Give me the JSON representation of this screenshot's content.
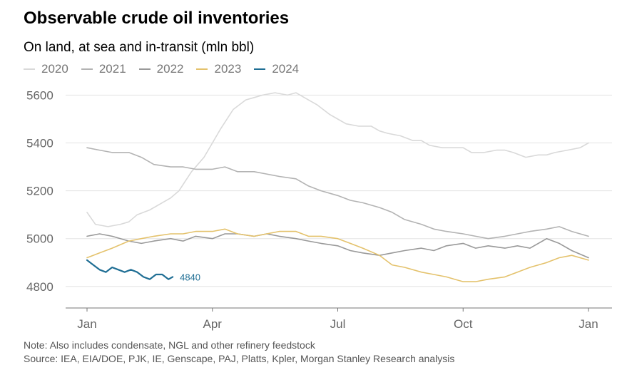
{
  "chart_data": {
    "type": "line",
    "title": "Observable crude oil inventories",
    "subtitle": "On land, at sea and in-transit (mln bbl)",
    "x_ticks": [
      "Jan",
      "Apr",
      "Jul",
      "Oct",
      "Jan"
    ],
    "y_ticks": [
      "5600",
      "5400",
      "5200",
      "5000",
      "4800"
    ],
    "ylim": [
      4710,
      5640
    ],
    "grid": "horizontal",
    "legend_position": "top-left",
    "series": [
      {
        "name": "2020",
        "color": "#d9d9d9",
        "x": [
          0,
          0.2,
          0.5,
          0.8,
          1.0,
          1.2,
          1.5,
          1.8,
          2.0,
          2.2,
          2.5,
          2.8,
          3.0,
          3.2,
          3.5,
          3.8,
          4.0,
          4.2,
          4.5,
          4.8,
          5.0,
          5.2,
          5.5,
          5.8,
          6.0,
          6.2,
          6.5,
          6.8,
          7.0,
          7.2,
          7.5,
          7.8,
          8.0,
          8.2,
          8.5,
          8.8,
          9.0,
          9.2,
          9.5,
          9.8,
          10.0,
          10.2,
          10.5,
          10.8,
          11.0,
          11.2,
          11.5,
          11.8,
          12.0
        ],
        "y": [
          5110,
          5060,
          5050,
          5060,
          5070,
          5100,
          5120,
          5150,
          5170,
          5200,
          5280,
          5340,
          5400,
          5460,
          5540,
          5580,
          5590,
          5600,
          5610,
          5600,
          5610,
          5590,
          5560,
          5520,
          5500,
          5480,
          5470,
          5470,
          5450,
          5440,
          5430,
          5410,
          5410,
          5390,
          5380,
          5380,
          5380,
          5360,
          5360,
          5370,
          5370,
          5360,
          5340,
          5350,
          5350,
          5360,
          5370,
          5380,
          5400
        ]
      },
      {
        "name": "2021",
        "color": "#b3b3b3",
        "x": [
          0,
          0.3,
          0.6,
          1.0,
          1.3,
          1.6,
          2.0,
          2.3,
          2.6,
          3.0,
          3.3,
          3.6,
          4.0,
          4.3,
          4.6,
          5.0,
          5.3,
          5.6,
          6.0,
          6.3,
          6.6,
          7.0,
          7.3,
          7.6,
          8.0,
          8.3,
          8.6,
          9.0,
          9.3,
          9.6,
          10.0,
          10.3,
          10.6,
          11.0,
          11.3,
          11.6,
          12.0
        ],
        "y": [
          5380,
          5370,
          5360,
          5360,
          5340,
          5310,
          5300,
          5300,
          5290,
          5290,
          5300,
          5280,
          5280,
          5270,
          5260,
          5250,
          5220,
          5200,
          5180,
          5160,
          5150,
          5130,
          5110,
          5080,
          5060,
          5040,
          5030,
          5020,
          5010,
          5000,
          5010,
          5020,
          5030,
          5040,
          5050,
          5030,
          5010
        ]
      },
      {
        "name": "2022",
        "color": "#999999",
        "x": [
          0,
          0.3,
          0.6,
          1.0,
          1.3,
          1.6,
          2.0,
          2.3,
          2.6,
          3.0,
          3.3,
          3.6,
          4.0,
          4.3,
          4.6,
          5.0,
          5.3,
          5.6,
          6.0,
          6.3,
          6.6,
          7.0,
          7.3,
          7.6,
          8.0,
          8.3,
          8.6,
          9.0,
          9.3,
          9.6,
          10.0,
          10.3,
          10.6,
          11.0,
          11.3,
          11.6,
          12.0
        ],
        "y": [
          5010,
          5020,
          5010,
          4990,
          4980,
          4990,
          5000,
          4990,
          5010,
          5000,
          5020,
          5020,
          5010,
          5020,
          5010,
          5000,
          4990,
          4980,
          4970,
          4950,
          4940,
          4930,
          4940,
          4950,
          4960,
          4950,
          4970,
          4980,
          4960,
          4970,
          4960,
          4970,
          4960,
          5000,
          4980,
          4950,
          4920
        ]
      },
      {
        "name": "2023",
        "color": "#e4c26c",
        "x": [
          0,
          0.3,
          0.6,
          1.0,
          1.3,
          1.6,
          2.0,
          2.3,
          2.6,
          3.0,
          3.3,
          3.6,
          4.0,
          4.3,
          4.6,
          5.0,
          5.3,
          5.6,
          6.0,
          6.3,
          6.6,
          7.0,
          7.3,
          7.6,
          8.0,
          8.3,
          8.6,
          9.0,
          9.3,
          9.6,
          10.0,
          10.3,
          10.6,
          11.0,
          11.3,
          11.6,
          12.0
        ],
        "y": [
          4920,
          4940,
          4960,
          4990,
          5000,
          5010,
          5020,
          5020,
          5030,
          5030,
          5040,
          5020,
          5010,
          5020,
          5030,
          5030,
          5010,
          5010,
          5000,
          4980,
          4960,
          4930,
          4890,
          4880,
          4860,
          4850,
          4840,
          4820,
          4820,
          4830,
          4840,
          4860,
          4880,
          4900,
          4920,
          4930,
          4910
        ]
      },
      {
        "name": "2024",
        "color": "#1f6e94",
        "x": [
          0,
          0.15,
          0.3,
          0.45,
          0.6,
          0.75,
          0.9,
          1.05,
          1.2,
          1.35,
          1.5,
          1.65,
          1.8,
          1.95,
          2.05
        ],
        "y": [
          4910,
          4890,
          4870,
          4860,
          4880,
          4870,
          4860,
          4870,
          4860,
          4840,
          4830,
          4850,
          4850,
          4830,
          4840
        ]
      }
    ],
    "end_label": "4840"
  },
  "note": "Note: Also includes condensate, NGL and other refinery feedstock",
  "source": "Source: IEA, EIA/DOE, PJK, IE, Genscape, PAJ, Platts, Kpler, Morgan Stanley Research analysis"
}
